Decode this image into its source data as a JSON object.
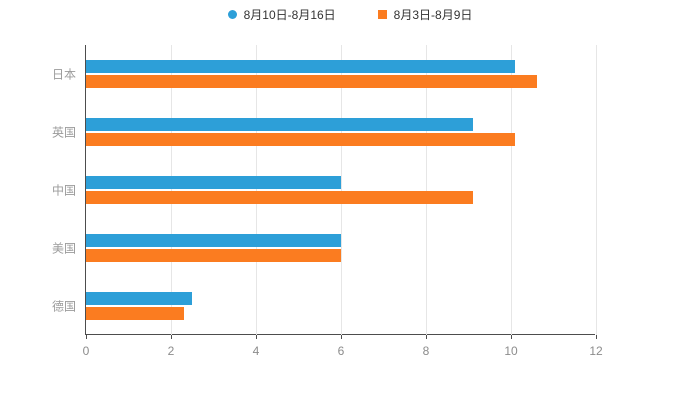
{
  "chart_data": {
    "type": "bar",
    "orientation": "horizontal",
    "title": "",
    "xlabel": "",
    "ylabel": "",
    "categories": [
      "日本",
      "英国",
      "中国",
      "美国",
      "德国"
    ],
    "series": [
      {
        "name": "8月10日-8月16日",
        "color": "#2D9FD8",
        "marker": "circle",
        "values": [
          10.1,
          9.1,
          6.0,
          6.0,
          2.5
        ]
      },
      {
        "name": "8月3日-8月9日",
        "color": "#FB7C20",
        "marker": "square",
        "values": [
          10.6,
          10.1,
          9.1,
          6.0,
          2.3
        ]
      }
    ],
    "xlim": [
      0,
      12
    ],
    "xticks": [
      0,
      2,
      4,
      6,
      8,
      10,
      12
    ],
    "grid": true,
    "legend_position": "top",
    "background_color": "#ffffff",
    "axis_line_color": "#4d4d4d",
    "gridline_color": "#e6e6e6",
    "tick_label_color": "#8c8c8c",
    "category_label_color": "#9b9b9b"
  }
}
